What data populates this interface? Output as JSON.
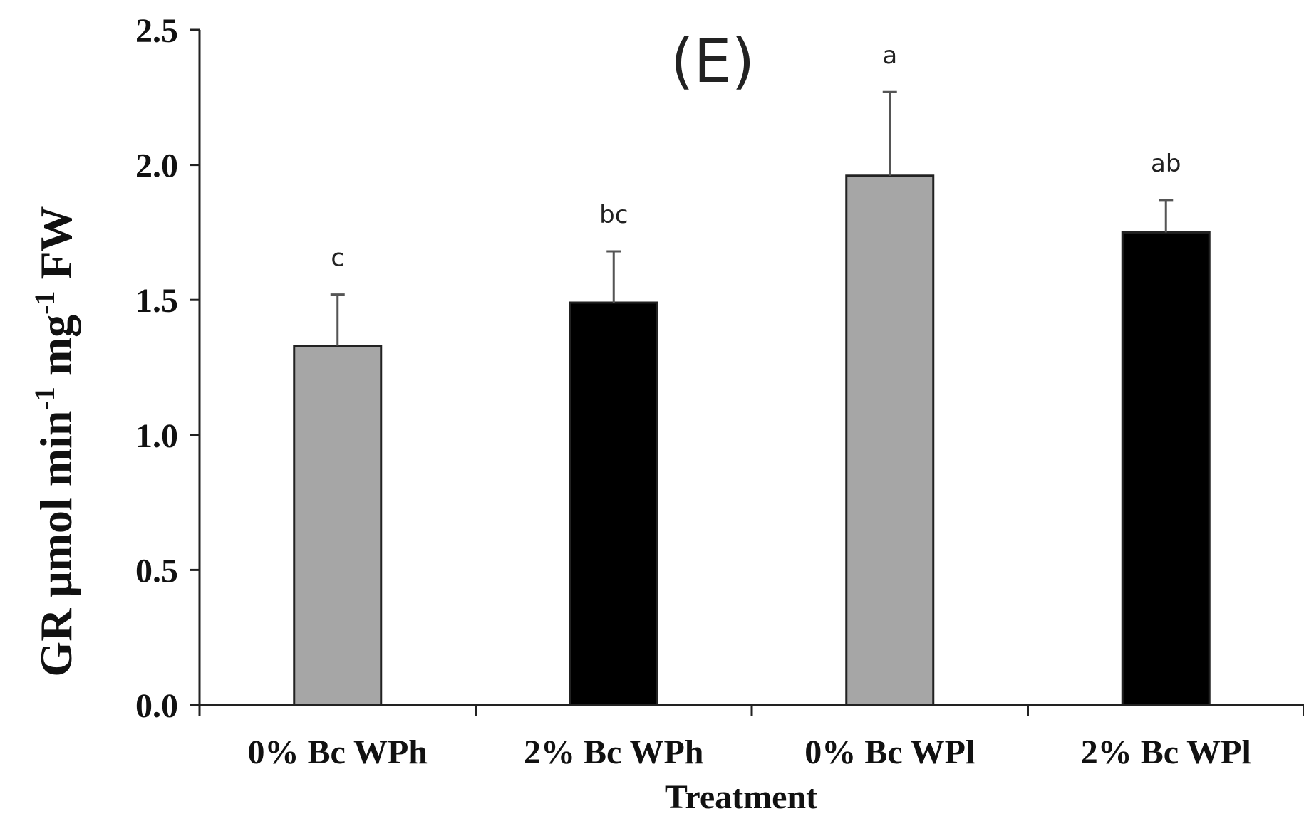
{
  "chart_data": {
    "type": "bar",
    "title": "(E)",
    "xlabel": "Treatment",
    "ylabel": {
      "prefix": "GR μmol min",
      "sup1": "-1",
      "middle": " mg",
      "sup2": "-1",
      "suffix": " FW"
    },
    "ylim": [
      0,
      2.5
    ],
    "yticks": [
      "0.0",
      "0.5",
      "1.0",
      "1.5",
      "2.0",
      "2.5"
    ],
    "categories": [
      "0% Bc WPh",
      "2% Bc WPh",
      "0% Bc WPl",
      "2% Bc WPl"
    ],
    "values": [
      1.33,
      1.49,
      1.96,
      1.75
    ],
    "errors": [
      0.19,
      0.19,
      0.31,
      0.12
    ],
    "significance_letters": [
      "c",
      "bc",
      "a",
      "ab"
    ],
    "bar_colors": [
      "#a6a6a6",
      "#000000",
      "#a6a6a6",
      "#000000"
    ],
    "grid": false,
    "legend": "none"
  }
}
